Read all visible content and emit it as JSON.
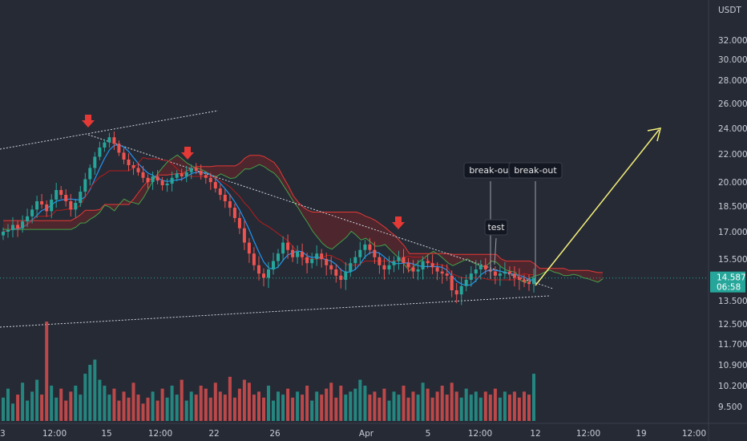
{
  "chart_data": {
    "type": "candlestick",
    "currency": "USDT",
    "y_ticks": [
      "32.000",
      "30.000",
      "28.000",
      "26.000",
      "24.000",
      "22.000",
      "20.000",
      "18.500",
      "17.000",
      "15.500",
      "14.587",
      "13.500",
      "12.500",
      "11.700",
      "10.900",
      "10.200",
      "9.500"
    ],
    "x_ticks": [
      "12:00",
      "15",
      "12:00",
      "22",
      "26",
      "Apr",
      "5",
      "12:00",
      "12",
      "12:00",
      "19",
      "12:00"
    ],
    "x_tick_first_partial": "3",
    "last_price": "14.587",
    "countdown": "06:58",
    "annotations": [
      "break-out",
      "break-out",
      "test"
    ],
    "close_series": [
      17.0,
      17.1,
      17.4,
      17.2,
      17.6,
      17.9,
      18.3,
      18.8,
      18.6,
      18.2,
      18.9,
      19.5,
      19.2,
      18.8,
      18.3,
      18.7,
      19.4,
      20.2,
      21.0,
      21.8,
      22.5,
      22.9,
      23.3,
      22.8,
      22.1,
      21.6,
      21.2,
      21.0,
      20.7,
      20.3,
      20.0,
      20.4,
      20.1,
      19.8,
      19.9,
      20.3,
      20.6,
      20.4,
      20.7,
      21.0,
      20.8,
      20.5,
      20.3,
      20.0,
      19.6,
      19.2,
      18.8,
      18.4,
      17.8,
      17.2,
      16.4,
      15.8,
      15.2,
      14.8,
      14.6,
      15.0,
      15.4,
      15.8,
      16.4,
      16.0,
      15.6,
      15.9,
      15.6,
      15.3,
      15.5,
      15.8,
      15.5,
      15.2,
      15.0,
      14.7,
      14.5,
      14.9,
      15.3,
      15.6,
      16.0,
      16.3,
      16.0,
      15.6,
      15.2,
      15.0,
      15.2,
      15.4,
      15.6,
      15.3,
      15.1,
      14.9,
      15.0,
      15.4,
      15.3,
      15.1,
      14.9,
      14.8,
      14.7,
      14.0,
      13.8,
      14.2,
      14.5,
      14.8,
      15.0,
      15.2,
      15.0,
      14.9,
      14.7,
      14.8,
      14.9,
      14.8,
      14.6,
      14.5,
      14.4,
      14.3,
      14.587
    ],
    "volume_series": [
      9.8,
      10.1,
      9.6,
      9.9,
      10.3,
      9.7,
      10.0,
      10.4,
      9.9,
      12.6,
      10.2,
      9.8,
      10.1,
      9.7,
      10.0,
      10.2,
      9.9,
      10.6,
      10.9,
      11.1,
      10.4,
      10.2,
      9.9,
      10.1,
      9.7,
      10.0,
      9.8,
      10.3,
      9.9,
      9.6,
      9.8,
      10.0,
      9.7,
      10.1,
      9.8,
      10.2,
      9.9,
      10.4,
      9.7,
      10.0,
      9.9,
      10.2,
      10.1,
      9.8,
      10.3,
      10.0,
      9.9,
      10.5,
      9.8,
      10.1,
      10.4,
      10.3,
      9.9,
      10.0,
      9.8,
      10.2,
      9.7,
      10.0,
      9.9,
      10.1,
      9.8,
      10.0,
      9.9,
      10.2,
      9.7,
      10.0,
      9.9,
      10.1,
      10.3,
      9.8,
      10.2,
      9.9,
      10.0,
      10.1,
      10.4,
      10.2,
      9.9,
      10.0,
      9.8,
      10.1,
      9.7,
      10.0,
      9.9,
      10.2,
      9.8,
      10.0,
      9.9,
      10.3,
      10.1,
      9.8,
      10.0,
      10.2,
      9.9,
      10.3,
      10.0,
      9.8,
      10.1,
      9.9,
      10.0,
      9.8,
      10.0,
      9.9,
      10.1,
      9.8,
      10.0,
      9.9,
      10.0,
      9.8,
      10.0,
      9.9,
      10.6
    ]
  },
  "colors": {
    "background": "#262a35",
    "up": "#26a69a",
    "down": "#ef5350",
    "arrow": "#e53935",
    "projection": "#f5f07a",
    "price_tag": "#26a69a",
    "tenkan": "#2196f3",
    "kijun": "#b71c1c",
    "span_a": "#43a047",
    "span_b": "#e53935"
  }
}
